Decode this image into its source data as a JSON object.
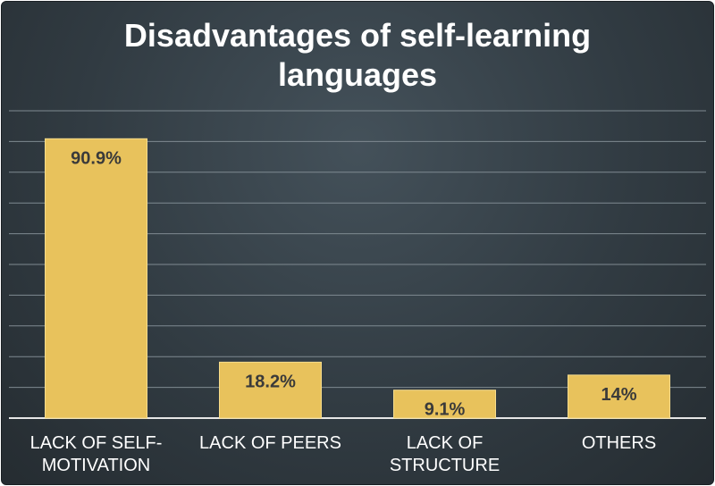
{
  "chart_data": {
    "type": "bar",
    "title_lines": [
      "Disadvantages of self-learning",
      "languages"
    ],
    "categories": [
      [
        "LACK OF SELF-",
        "MOTIVATION"
      ],
      [
        "LACK OF PEERS"
      ],
      [
        "LACK OF",
        "STRUCTURE"
      ],
      [
        "OTHERS"
      ]
    ],
    "values": [
      90.9,
      18.2,
      9.1,
      14
    ],
    "value_labels": [
      "90.9%",
      "18.2%",
      "9.1%",
      "14%"
    ],
    "ylim": [
      0,
      100
    ],
    "grid": true,
    "legend": "none",
    "colors": {
      "bar": "#e8c25c",
      "bar_stroke": "#f6dc8c",
      "grid": "#7f8a91",
      "axis": "#e6e6e6"
    }
  }
}
